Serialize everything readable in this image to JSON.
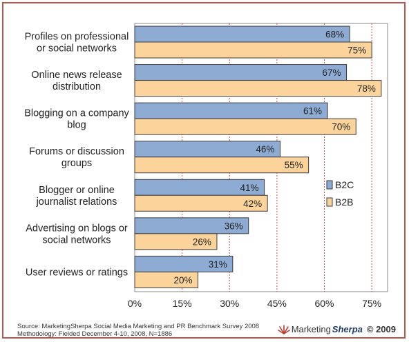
{
  "chart_data": {
    "type": "bar",
    "orientation": "horizontal",
    "categories": [
      [
        "Profiles on professional",
        "or social networks"
      ],
      [
        "Online news release",
        "distribution"
      ],
      [
        "Blogging on a company",
        "blog"
      ],
      [
        "Forums or discussion",
        "groups"
      ],
      [
        "Blogger or online",
        "journalist relations"
      ],
      [
        "Advertising on blogs or",
        "social networks"
      ],
      [
        "User reviews or ratings"
      ]
    ],
    "series": [
      {
        "name": "B2C",
        "values": [
          68,
          67,
          61,
          46,
          41,
          36,
          31
        ],
        "color": "#8eabd4",
        "labels": [
          "68%",
          "67%",
          "61%",
          "46%",
          "41%",
          "36%",
          "31%"
        ]
      },
      {
        "name": "B2B",
        "values": [
          75,
          78,
          70,
          55,
          42,
          26,
          20
        ],
        "color": "#fcd49b",
        "labels": [
          "75%",
          "78%",
          "70%",
          "55%",
          "42%",
          "26%",
          "20%"
        ]
      }
    ],
    "xlim": [
      0,
      80
    ],
    "xticks": [
      0,
      15,
      30,
      45,
      60,
      75
    ],
    "xtick_labels": [
      "0%",
      "15%",
      "30%",
      "45%",
      "60%",
      "75%"
    ],
    "grid": true,
    "gridline_color": "#c0504d",
    "legend_position": "right",
    "title": "",
    "xlabel": "",
    "ylabel": ""
  },
  "footer": {
    "source_line1": "Source: MarketingSherpa Social Media Marketing and PR Benchmark Survey 2008",
    "source_line2": "Methodology: Fielded December 4-10, 2008, N=1886"
  },
  "logo": {
    "marketing": "Marketing",
    "sherpa": "Sherpa",
    "copyright": "© 2009",
    "icon": "sunburst-icon"
  }
}
